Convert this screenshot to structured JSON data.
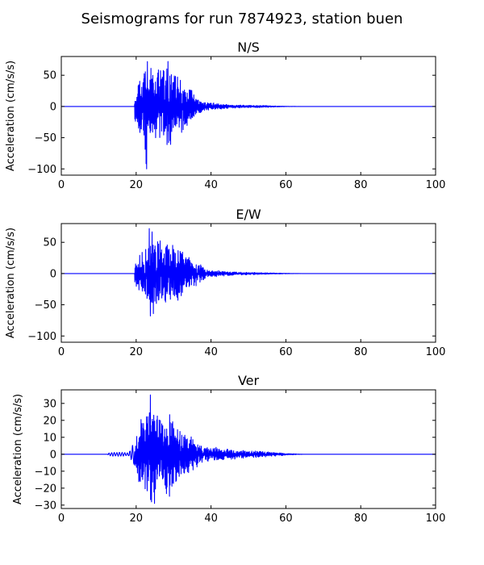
{
  "figure": {
    "suptitle": "Seismograms for run 7874923, station buen"
  },
  "chart_data": [
    {
      "type": "line",
      "title": "N/S",
      "xlabel": "",
      "ylabel": "Acceleration (cm/s/s)",
      "xlim": [
        0,
        100
      ],
      "ylim": [
        -110,
        80
      ],
      "xticks": [
        0,
        20,
        40,
        60,
        80,
        100
      ],
      "yticks": [
        -100,
        -50,
        0,
        50
      ],
      "grid": false,
      "series": [
        {
          "color": "#0000ff",
          "noise_start": 13,
          "onset": 19.6,
          "envelope": [
            [
              19.6,
              25
            ],
            [
              20.2,
              42
            ],
            [
              21.5,
              50
            ],
            [
              22.8,
              100
            ],
            [
              24,
              60
            ],
            [
              26,
              66
            ],
            [
              27.5,
              68
            ],
            [
              28.5,
              72
            ],
            [
              30,
              58
            ],
            [
              31.5,
              45
            ],
            [
              33,
              40
            ],
            [
              34.5,
              30
            ],
            [
              36,
              18
            ],
            [
              37.5,
              10
            ],
            [
              39,
              7
            ],
            [
              42,
              5
            ],
            [
              45,
              3
            ],
            [
              50,
              2
            ],
            [
              55,
              1.5
            ],
            [
              57,
              0.8
            ],
            [
              60,
              0.3
            ],
            [
              65,
              0
            ]
          ],
          "peak_max": {
            "t": 28.5,
            "value": 72
          },
          "peak_min": {
            "t": 22.8,
            "value": -100
          }
        }
      ]
    },
    {
      "type": "line",
      "title": "E/W",
      "xlabel": "",
      "ylabel": "Acceleration (cm/s/s)",
      "xlim": [
        0,
        100
      ],
      "ylim": [
        -110,
        80
      ],
      "xticks": [
        0,
        20,
        40,
        60,
        80,
        100
      ],
      "yticks": [
        -100,
        -50,
        0,
        50
      ],
      "grid": false,
      "series": [
        {
          "color": "#0000ff",
          "noise_start": 13,
          "onset": 19.6,
          "envelope": [
            [
              19.6,
              18
            ],
            [
              21,
              32
            ],
            [
              22.5,
              48
            ],
            [
              23.5,
              72
            ],
            [
              24.5,
              68
            ],
            [
              26,
              60
            ],
            [
              27.5,
              50
            ],
            [
              29,
              55
            ],
            [
              30.5,
              50
            ],
            [
              32,
              45
            ],
            [
              33.5,
              35
            ],
            [
              35,
              25
            ],
            [
              37,
              15
            ],
            [
              39,
              8
            ],
            [
              42,
              5
            ],
            [
              45,
              3
            ],
            [
              50,
              2
            ],
            [
              55,
              1.2
            ],
            [
              60,
              0.4
            ],
            [
              65,
              0
            ]
          ],
          "peak_max": {
            "t": 23.5,
            "value": 72
          },
          "peak_min": {
            "t": 23.8,
            "value": -68
          }
        }
      ]
    },
    {
      "type": "line",
      "title": "Ver",
      "xlabel": "",
      "ylabel": "Acceleration (cm/s/s)",
      "xlim": [
        0,
        100
      ],
      "ylim": [
        -32,
        38
      ],
      "xticks": [
        0,
        20,
        40,
        60,
        80,
        100
      ],
      "yticks": [
        -30,
        -20,
        -10,
        0,
        10,
        20,
        30
      ],
      "grid": false,
      "series": [
        {
          "color": "#0000ff",
          "noise_start": 12.5,
          "onset": 19.6,
          "envelope": [
            [
              12.5,
              0.8
            ],
            [
              14,
              1.2
            ],
            [
              16,
              1.2
            ],
            [
              18,
              1.0
            ],
            [
              19.6,
              8
            ],
            [
              21,
              20
            ],
            [
              22.5,
              25
            ],
            [
              23.5,
              35
            ],
            [
              24.5,
              28
            ],
            [
              26,
              22
            ],
            [
              27.5,
              24
            ],
            [
              29,
              26
            ],
            [
              30.5,
              18
            ],
            [
              32,
              16
            ],
            [
              34,
              12
            ],
            [
              36,
              8
            ],
            [
              38,
              5
            ],
            [
              42,
              4
            ],
            [
              46,
              3
            ],
            [
              50,
              2.5
            ],
            [
              55,
              1.5
            ],
            [
              58,
              1.2
            ],
            [
              60,
              0.5
            ],
            [
              65,
              0
            ]
          ],
          "peak_max": {
            "t": 23.8,
            "value": 35
          },
          "peak_min": {
            "t": 24.9,
            "value": -29
          }
        }
      ]
    }
  ]
}
